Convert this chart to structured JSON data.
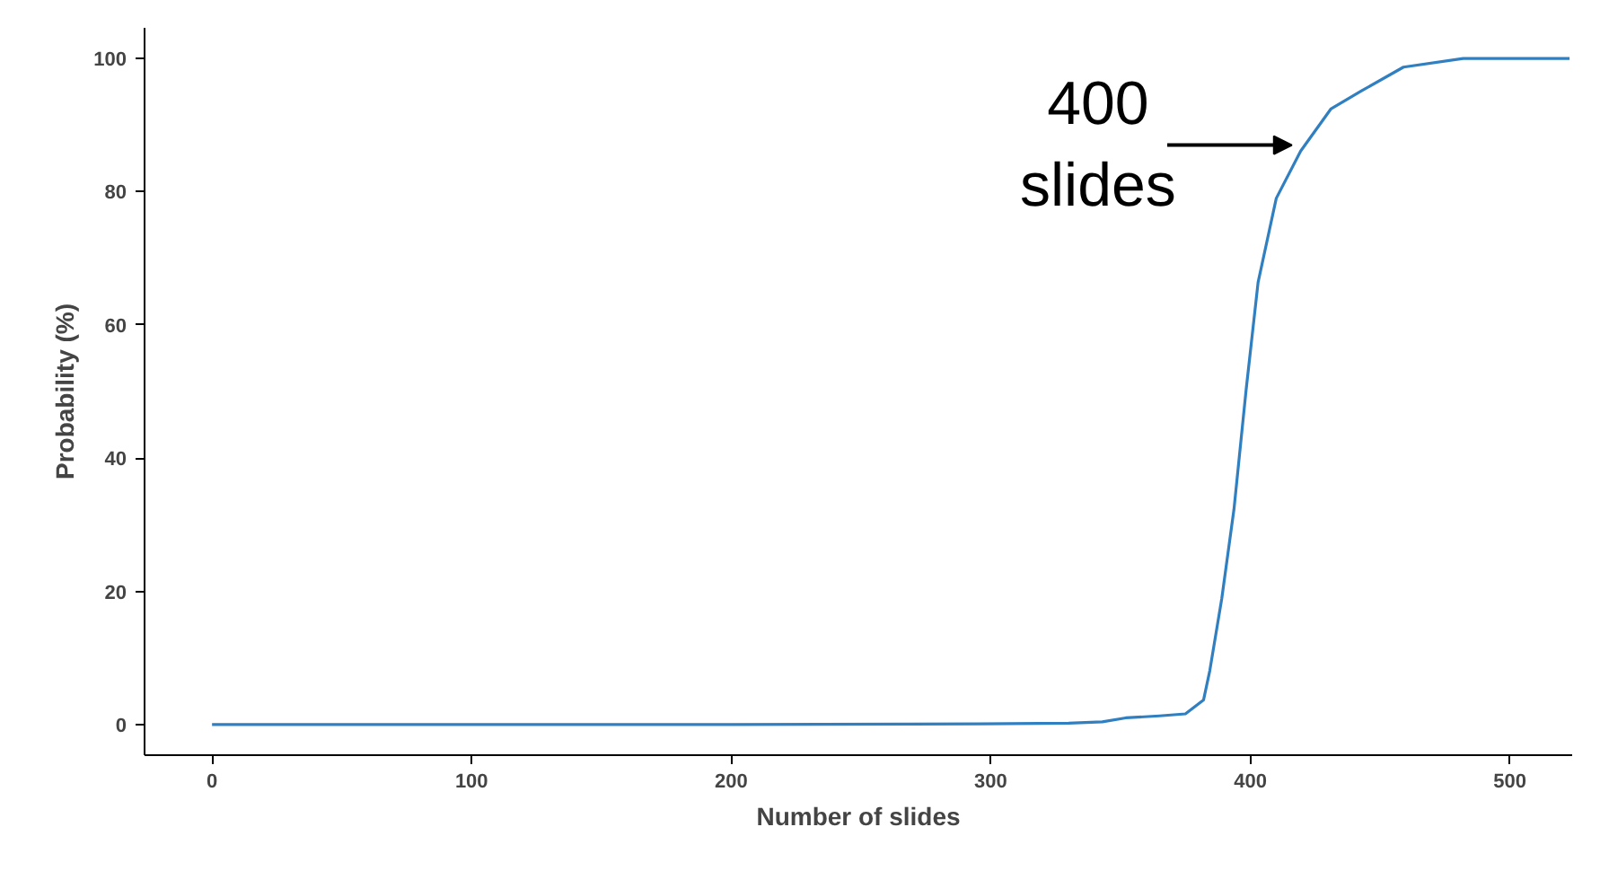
{
  "chart_data": {
    "type": "line",
    "xlabel": "Number of slides",
    "ylabel": "Probability (%)",
    "xlim": [
      -26,
      524
    ],
    "ylim": [
      -4.6,
      104.6
    ],
    "xticks": [
      0,
      100,
      200,
      300,
      400,
      500
    ],
    "yticks": [
      0,
      20,
      40,
      60,
      80,
      100
    ],
    "grid": false,
    "x": [
      0,
      100,
      200,
      296,
      330,
      343,
      352,
      365,
      375,
      382,
      384.4,
      389,
      393.7,
      398.4,
      403,
      410,
      419.4,
      431,
      442.7,
      459,
      482,
      523
    ],
    "series": [
      {
        "color": "#2f7fc1",
        "values": [
          0,
          0,
          0,
          0.1,
          0.2,
          0.4,
          1.0,
          1.3,
          1.6,
          3.7,
          8.1,
          18.9,
          32.3,
          50.3,
          66.4,
          79,
          86.1,
          92.4,
          95.1,
          98.7,
          100,
          100
        ]
      }
    ],
    "annotations": [
      {
        "text": "400\nslides",
        "x": 418,
        "y": 87
      }
    ]
  }
}
